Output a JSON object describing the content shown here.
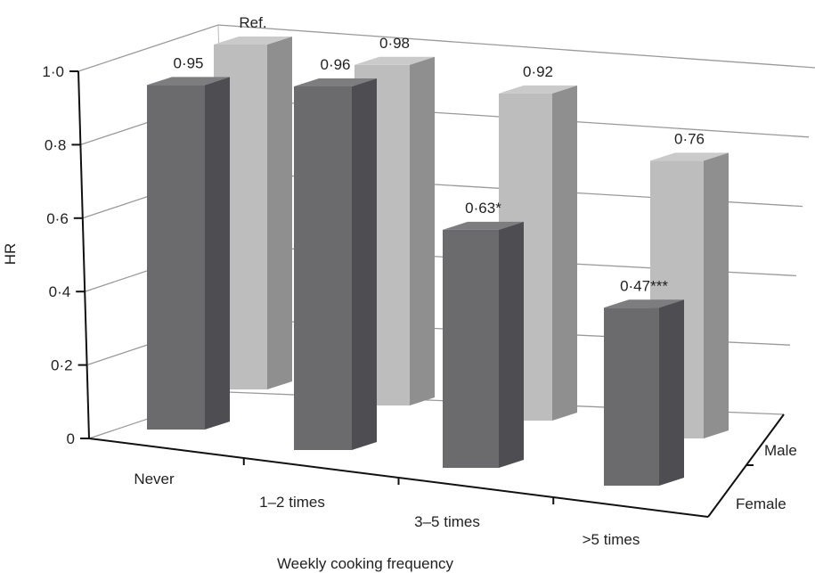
{
  "chart_data": {
    "type": "bar",
    "subtype": "3d-clustered",
    "xlabel": "Weekly cooking frequency",
    "ylabel": "HR",
    "ylim": [
      0,
      1.0
    ],
    "yticks": [
      "0",
      "0·2",
      "0·4",
      "0·6",
      "0·8",
      "1·0"
    ],
    "categories": [
      "Never",
      "1–2 times",
      "3–5 times",
      ">5 times"
    ],
    "depth_labels": [
      "Male",
      "Female"
    ],
    "grid": true,
    "series": [
      {
        "name": "Female",
        "values": [
          0.95,
          0.96,
          0.63,
          0.47
        ],
        "labels": [
          "0·95",
          "0·96",
          "0·63*",
          "0·47***"
        ],
        "color": "#6b6b6e"
      },
      {
        "name": "Male",
        "values": [
          1.0,
          0.98,
          0.92,
          0.76
        ],
        "labels": [
          "Ref.",
          "0·98",
          "0·92",
          "0·76"
        ],
        "color": "#bdbdbd"
      }
    ]
  }
}
